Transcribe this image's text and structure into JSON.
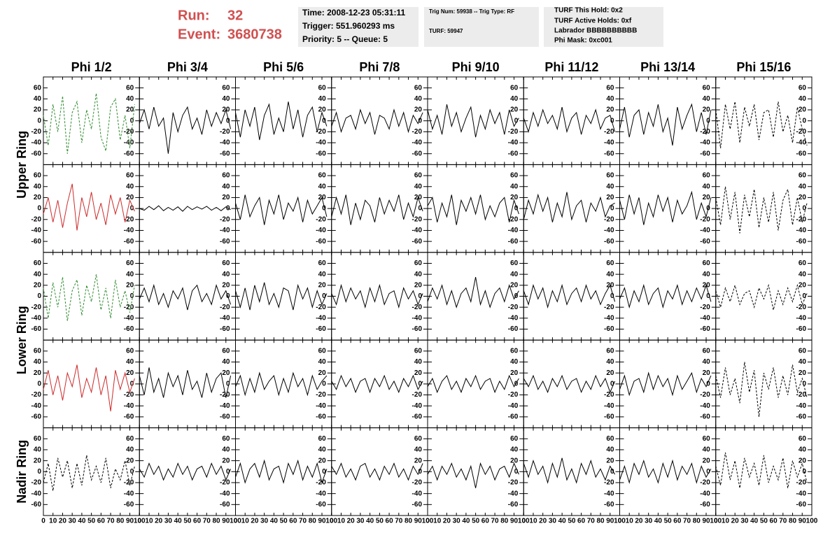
{
  "header": {
    "run_label": "Run:",
    "run": "32",
    "event_label": "Event:",
    "event": "3680738",
    "box1": [
      "Time: 2008-12-23 05:31:11",
      "Trigger: 551.960293 ms",
      "Priority: 5 -- Queue: 5"
    ],
    "box2": [
      "Trig Num: 59938 -- Trig Type: RF",
      "TURF: 59947"
    ],
    "box3": [
      "TURF This Hold: 0x2",
      "TURF Active Holds: 0xf",
      "Labrador BBBBBBBBBB",
      "Phi Mask: 0xc001"
    ]
  },
  "chart_data": {
    "type": "waveform-grid",
    "columns": [
      "Phi 1/2",
      "Phi 3/4",
      "Phi 5/6",
      "Phi 7/8",
      "Phi 9/10",
      "Phi 11/12",
      "Phi 13/14",
      "Phi 15/16"
    ],
    "row_labels": [
      "Upper Ring",
      "Lower Ring",
      "Nadir Ring"
    ],
    "xlim": [
      0,
      100
    ],
    "xticks": [
      0,
      10,
      20,
      30,
      40,
      50,
      60,
      70,
      80,
      90,
      100
    ],
    "ylim": [
      -80,
      80
    ],
    "yticks": [
      60,
      40,
      20,
      0,
      -20,
      -40,
      -60
    ],
    "x": [
      0,
      5,
      10,
      15,
      20,
      25,
      30,
      35,
      40,
      45,
      50,
      55,
      60,
      65,
      70,
      75,
      80,
      85,
      90,
      95
    ],
    "panels": [
      [
        {
          "color": "#2e8b2e",
          "dashed": true,
          "values": [
            10,
            -45,
            30,
            -20,
            45,
            -60,
            15,
            35,
            -40,
            20,
            -15,
            50,
            -30,
            -55,
            25,
            40,
            -35,
            10,
            -50,
            30
          ]
        },
        {
          "color": "#000000",
          "dashed": false,
          "values": [
            -5,
            20,
            -15,
            25,
            -10,
            5,
            -60,
            15,
            -20,
            10,
            25,
            -15,
            5,
            -25,
            20,
            -10,
            15,
            -5,
            20,
            -15
          ]
        },
        {
          "color": "#000000",
          "dashed": false,
          "values": [
            15,
            -30,
            20,
            -10,
            25,
            -35,
            10,
            30,
            -25,
            5,
            -20,
            35,
            -15,
            20,
            -30,
            10,
            25,
            -20,
            15,
            -10
          ]
        },
        {
          "color": "#000000",
          "dashed": false,
          "values": [
            -10,
            15,
            -20,
            5,
            10,
            -15,
            20,
            -5,
            15,
            -25,
            10,
            5,
            -15,
            20,
            -10,
            15,
            -20,
            10,
            -5,
            15
          ]
        },
        {
          "color": "#000000",
          "dashed": false,
          "values": [
            20,
            -15,
            10,
            -25,
            30,
            -10,
            15,
            -20,
            5,
            25,
            -30,
            10,
            -15,
            20,
            -5,
            15,
            -25,
            20,
            -10,
            5
          ]
        },
        {
          "color": "#000000",
          "dashed": false,
          "values": [
            5,
            -20,
            15,
            -10,
            20,
            -5,
            10,
            -15,
            25,
            -20,
            5,
            15,
            -25,
            10,
            -5,
            20,
            -15,
            5,
            10,
            -20
          ]
        },
        {
          "color": "#000000",
          "dashed": false,
          "values": [
            -15,
            25,
            -30,
            10,
            20,
            -25,
            15,
            -10,
            30,
            -20,
            5,
            -45,
            25,
            -15,
            10,
            30,
            -20,
            15,
            -25,
            20
          ]
        },
        {
          "color": "#000000",
          "dashed": true,
          "values": [
            20,
            -50,
            30,
            -15,
            35,
            -40,
            25,
            -10,
            30,
            -35,
            15,
            20,
            -30,
            35,
            -20,
            10,
            -40,
            25,
            -15,
            -45
          ]
        }
      ],
      [
        {
          "color": "#cc2a2a",
          "dashed": false,
          "values": [
            -10,
            20,
            -25,
            15,
            -35,
            10,
            45,
            -40,
            20,
            -15,
            30,
            -20,
            10,
            -30,
            25,
            -10,
            20,
            -25,
            15,
            -5
          ]
        },
        {
          "color": "#000000",
          "dashed": false,
          "values": [
            0,
            -3,
            4,
            -2,
            5,
            -4,
            2,
            -3,
            3,
            -5,
            4,
            -2,
            3,
            -1,
            4,
            -3,
            2,
            -4,
            3,
            -2
          ]
        },
        {
          "color": "#000000",
          "dashed": false,
          "values": [
            10,
            -20,
            25,
            -15,
            5,
            20,
            -30,
            15,
            -10,
            25,
            -20,
            10,
            -5,
            20,
            -25,
            15,
            -10,
            5,
            20,
            -15
          ]
        },
        {
          "color": "#000000",
          "dashed": false,
          "values": [
            -15,
            20,
            -10,
            25,
            -30,
            10,
            -20,
            15,
            5,
            -25,
            20,
            -10,
            15,
            -5,
            25,
            -20,
            10,
            -15,
            20,
            -5
          ]
        },
        {
          "color": "#000000",
          "dashed": false,
          "values": [
            5,
            20,
            -25,
            10,
            -15,
            25,
            -30,
            15,
            -5,
            20,
            -10,
            25,
            -20,
            5,
            -15,
            10,
            20,
            -25,
            15,
            -10
          ]
        },
        {
          "color": "#000000",
          "dashed": false,
          "values": [
            -20,
            15,
            -10,
            25,
            -5,
            20,
            -25,
            10,
            -15,
            30,
            -20,
            5,
            15,
            -25,
            10,
            -5,
            20,
            -15,
            5,
            10
          ]
        },
        {
          "color": "#000000",
          "dashed": false,
          "values": [
            15,
            -20,
            25,
            -10,
            20,
            -30,
            10,
            -15,
            25,
            -5,
            20,
            -25,
            15,
            -10,
            5,
            30,
            -20,
            10,
            -15,
            20
          ]
        },
        {
          "color": "#000000",
          "dashed": true,
          "values": [
            20,
            -30,
            40,
            -20,
            30,
            -45,
            25,
            -15,
            35,
            -35,
            20,
            -25,
            30,
            -40,
            15,
            35,
            -30,
            20,
            -25,
            10
          ]
        }
      ],
      [
        {
          "color": "#2e8b2e",
          "dashed": true,
          "values": [
            15,
            -40,
            25,
            -20,
            35,
            -45,
            10,
            30,
            -35,
            20,
            -10,
            40,
            -25,
            15,
            -40,
            30,
            -20,
            10,
            -30,
            20
          ]
        },
        {
          "color": "#000000",
          "dashed": false,
          "values": [
            -5,
            15,
            -10,
            20,
            -15,
            5,
            -20,
            10,
            -5,
            15,
            -25,
            10,
            20,
            -10,
            5,
            -15,
            20,
            -5,
            10,
            -15
          ]
        },
        {
          "color": "#000000",
          "dashed": false,
          "values": [
            10,
            -20,
            15,
            -25,
            20,
            -10,
            25,
            -15,
            5,
            -20,
            15,
            10,
            -25,
            20,
            -5,
            15,
            -20,
            10,
            -15,
            5
          ]
        },
        {
          "color": "#000000",
          "dashed": false,
          "values": [
            5,
            -15,
            20,
            -10,
            15,
            -5,
            10,
            -20,
            15,
            -10,
            20,
            -15,
            5,
            10,
            -20,
            15,
            -5,
            10,
            -15,
            5
          ]
        },
        {
          "color": "#000000",
          "dashed": false,
          "values": [
            -10,
            15,
            -5,
            20,
            -15,
            10,
            -20,
            5,
            15,
            -10,
            35,
            -15,
            10,
            -20,
            5,
            15,
            -10,
            20,
            -5,
            10
          ]
        },
        {
          "color": "#000000",
          "dashed": false,
          "values": [
            10,
            -15,
            20,
            -5,
            15,
            -20,
            10,
            -10,
            20,
            -15,
            5,
            15,
            -10,
            20,
            -5,
            10,
            -15,
            5,
            20,
            -10
          ]
        },
        {
          "color": "#000000",
          "dashed": false,
          "values": [
            -5,
            15,
            -20,
            10,
            -10,
            20,
            -15,
            5,
            15,
            -20,
            10,
            -5,
            20,
            -15,
            10,
            -10,
            15,
            -5,
            20,
            -10
          ]
        },
        {
          "color": "#000000",
          "dashed": true,
          "values": [
            10,
            -20,
            15,
            -10,
            20,
            -15,
            5,
            10,
            -20,
            15,
            -5,
            20,
            -25,
            10,
            -15,
            15,
            -10,
            20,
            -15,
            5
          ]
        }
      ],
      [
        {
          "color": "#cc2a2a",
          "dashed": false,
          "values": [
            -10,
            25,
            -20,
            15,
            -30,
            20,
            -5,
            35,
            -25,
            10,
            -15,
            30,
            -20,
            15,
            -50,
            25,
            -10,
            20,
            -15,
            10
          ]
        },
        {
          "color": "#000000",
          "dashed": false,
          "values": [
            15,
            -20,
            30,
            -15,
            10,
            -25,
            20,
            -5,
            15,
            -20,
            25,
            -10,
            5,
            -25,
            20,
            -15,
            10,
            20,
            -25,
            15
          ]
        },
        {
          "color": "#000000",
          "dashed": false,
          "values": [
            -5,
            15,
            -20,
            10,
            -15,
            20,
            -10,
            5,
            15,
            -20,
            10,
            -15,
            20,
            -5,
            10,
            -20,
            15,
            -10,
            5,
            15
          ]
        },
        {
          "color": "#000000",
          "dashed": false,
          "values": [
            5,
            -10,
            15,
            -5,
            10,
            -15,
            5,
            10,
            -15,
            10,
            -5,
            15,
            -10,
            5,
            -15,
            10,
            -5,
            15,
            -10,
            5
          ]
        },
        {
          "color": "#000000",
          "dashed": false,
          "values": [
            -5,
            10,
            -15,
            5,
            15,
            -10,
            5,
            -15,
            10,
            -5,
            15,
            -10,
            5,
            10,
            -15,
            5,
            -10,
            15,
            -5,
            10
          ]
        },
        {
          "color": "#000000",
          "dashed": false,
          "values": [
            10,
            -5,
            15,
            -10,
            5,
            -15,
            10,
            -5,
            15,
            -10,
            5,
            10,
            -15,
            5,
            -10,
            15,
            -5,
            10,
            -15,
            5
          ]
        },
        {
          "color": "#000000",
          "dashed": false,
          "values": [
            -10,
            15,
            -20,
            5,
            10,
            -15,
            20,
            -10,
            15,
            -5,
            10,
            -20,
            15,
            -10,
            5,
            20,
            -15,
            10,
            -5,
            15
          ]
        },
        {
          "color": "#000000",
          "dashed": true,
          "values": [
            15,
            -25,
            30,
            -20,
            10,
            -35,
            40,
            -15,
            25,
            -60,
            20,
            -10,
            30,
            -25,
            15,
            -20,
            35,
            -15,
            10,
            -25
          ]
        }
      ],
      [
        {
          "color": "#000000",
          "dashed": true,
          "values": [
            -20,
            15,
            -35,
            25,
            -10,
            20,
            -30,
            15,
            -25,
            30,
            -15,
            10,
            -20,
            25,
            -30,
            5,
            -15,
            20,
            -25,
            10
          ]
        },
        {
          "color": "#000000",
          "dashed": false,
          "values": [
            5,
            -10,
            15,
            -5,
            10,
            -15,
            5,
            -10,
            15,
            -5,
            10,
            -15,
            5,
            10,
            -10,
            15,
            -5,
            10,
            -15,
            5
          ]
        },
        {
          "color": "#000000",
          "dashed": false,
          "values": [
            -10,
            15,
            -20,
            5,
            15,
            -10,
            20,
            -15,
            5,
            10,
            -20,
            15,
            -5,
            20,
            -15,
            10,
            -10,
            15,
            -20,
            5
          ]
        },
        {
          "color": "#000000",
          "dashed": false,
          "values": [
            10,
            -5,
            15,
            -10,
            5,
            -15,
            10,
            15,
            -10,
            5,
            -15,
            10,
            -5,
            15,
            -10,
            5,
            -15,
            10,
            -5,
            15
          ]
        },
        {
          "color": "#000000",
          "dashed": false,
          "values": [
            -5,
            10,
            -15,
            10,
            -5,
            15,
            -10,
            5,
            -15,
            10,
            -30,
            15,
            -5,
            10,
            -15,
            5,
            10,
            -10,
            15,
            -5
          ]
        },
        {
          "color": "#000000",
          "dashed": false,
          "values": [
            15,
            -10,
            20,
            -5,
            10,
            -20,
            15,
            -10,
            25,
            -15,
            5,
            -20,
            15,
            -5,
            20,
            -10,
            5,
            -15,
            10,
            -5
          ]
        },
        {
          "color": "#000000",
          "dashed": false,
          "values": [
            -15,
            10,
            -20,
            15,
            -5,
            20,
            -10,
            5,
            -20,
            15,
            -10,
            20,
            -15,
            10,
            -5,
            15,
            -20,
            10,
            -10,
            5
          ]
        },
        {
          "color": "#000000",
          "dashed": true,
          "values": [
            10,
            -25,
            35,
            -15,
            20,
            -30,
            25,
            -10,
            15,
            -25,
            30,
            -20,
            10,
            -15,
            25,
            -30,
            20,
            -10,
            15,
            -20
          ]
        }
      ]
    ]
  }
}
